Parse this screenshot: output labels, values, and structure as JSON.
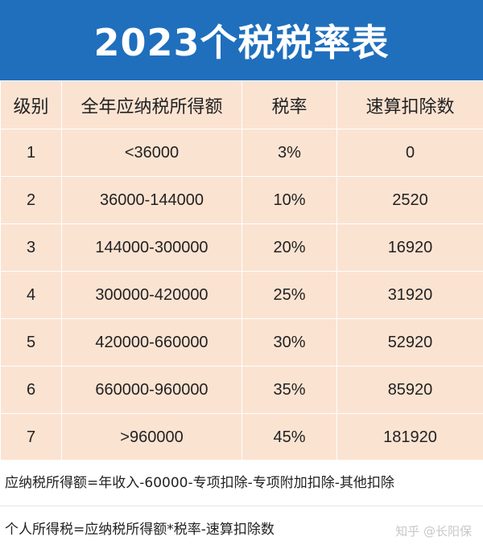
{
  "title": "2023个税税率表",
  "table": {
    "headers": [
      "级别",
      "全年应纳税所得额",
      "税率",
      "速算扣除数"
    ],
    "rows": [
      [
        "1",
        "<36000",
        "3%",
        "0"
      ],
      [
        "2",
        "36000-144000",
        "10%",
        "2520"
      ],
      [
        "3",
        "144000-300000",
        "20%",
        "16920"
      ],
      [
        "4",
        "300000-420000",
        "25%",
        "31920"
      ],
      [
        "5",
        "420000-660000",
        "30%",
        "52920"
      ],
      [
        "6",
        "660000-960000",
        "35%",
        "85920"
      ],
      [
        "7",
        ">960000",
        "45%",
        "181920"
      ]
    ]
  },
  "notes": [
    "应纳税所得额=年收入-60000-专项扣除-专项附加扣除-其他扣除",
    "个人所得税=应纳税所得额*税率-速算扣除数"
  ],
  "watermark": "知乎 @长阳保",
  "colors": {
    "title_bg": "#1f6fbd",
    "table_bg": "#fbe3d2",
    "title_text": "#ffffff"
  }
}
